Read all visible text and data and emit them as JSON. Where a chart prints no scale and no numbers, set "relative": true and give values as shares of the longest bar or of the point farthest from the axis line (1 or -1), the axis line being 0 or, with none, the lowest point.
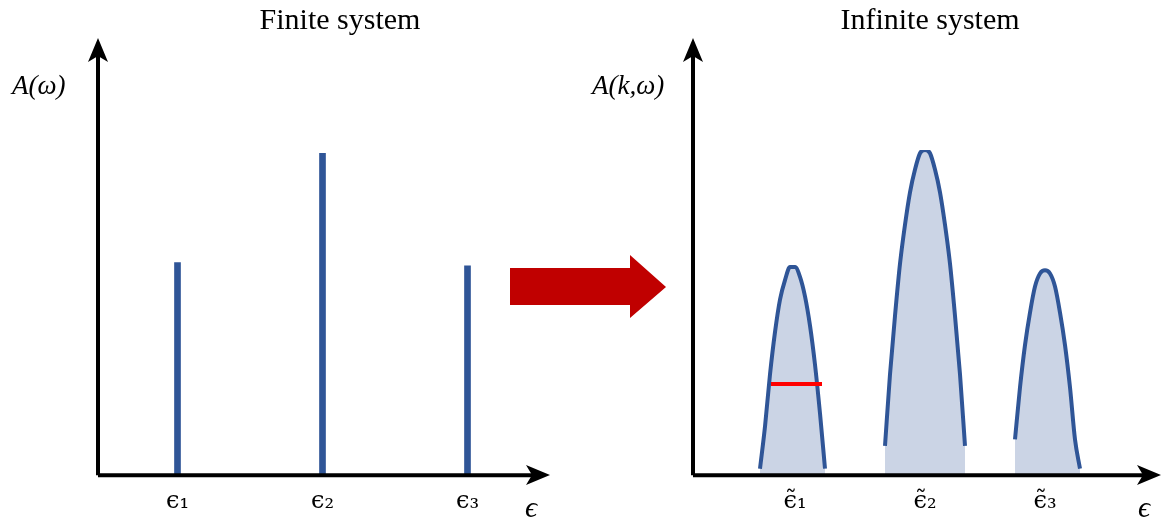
{
  "chart_data": [
    {
      "type": "bar",
      "title": "Finite system",
      "ylabel": "A(ω)",
      "xlabel": "ϵ",
      "relative": true,
      "categories": [
        "ϵ₁",
        "ϵ₂",
        "ϵ₃"
      ],
      "values": [
        0.66,
        1,
        0.65
      ],
      "color": "#2f5597"
    },
    {
      "type": "area",
      "title": "Infinite system",
      "ylabel": "A(k,ω)",
      "xlabel": "ϵ",
      "relative": true,
      "categories": [
        null,
        null,
        null,
        null,
        null,
        null,
        null,
        null,
        null,
        null,
        null,
        null,
        null,
        null,
        null,
        null,
        null,
        null,
        null,
        "ϵ̃₁",
        null,
        null,
        null,
        null,
        null,
        null,
        null,
        null,
        null,
        null,
        null,
        null,
        null,
        null,
        null,
        null,
        null,
        null,
        null,
        null,
        null,
        null,
        null,
        null,
        null,
        "ϵ̃₂",
        null,
        null,
        null,
        null,
        null,
        null,
        null,
        null,
        null,
        null,
        null,
        null,
        null,
        null,
        null,
        null,
        null,
        null,
        null,
        null,
        null,
        null,
        null,
        "ϵ̃₃",
        null,
        null,
        null,
        null,
        null,
        null,
        null,
        null,
        null,
        null,
        null,
        null,
        null,
        null,
        null,
        null,
        null
      ],
      "series": [
        {
          "color": "#2f5597",
          "values": [
            null,
            null,
            null,
            null,
            null,
            null,
            null,
            null,
            null,
            null,
            null,
            null,
            0.02,
            0.15,
            0.31,
            0.44,
            0.54,
            0.6,
            0.64,
            0.64,
            0.61,
            0.55,
            0.46,
            0.34,
            0.19,
            0.02,
            null,
            null,
            null,
            null,
            null,
            null,
            null,
            null,
            null,
            null,
            null,
            0.09,
            0.31,
            0.49,
            0.65,
            0.77,
            0.87,
            0.94,
            0.99,
            1,
            0.99,
            0.94,
            0.87,
            0.77,
            0.65,
            0.49,
            0.31,
            0.09,
            null,
            null,
            null,
            null,
            null,
            null,
            null,
            null,
            null,
            0.11,
            0.27,
            0.4,
            0.5,
            0.58,
            0.62,
            0.63,
            0.62,
            0.58,
            0.5,
            0.4,
            0.27,
            0.11,
            0.02,
            null,
            null,
            null,
            null,
            null,
            null,
            null,
            null,
            null,
            null
          ]
        }
      ]
    }
  ]
}
